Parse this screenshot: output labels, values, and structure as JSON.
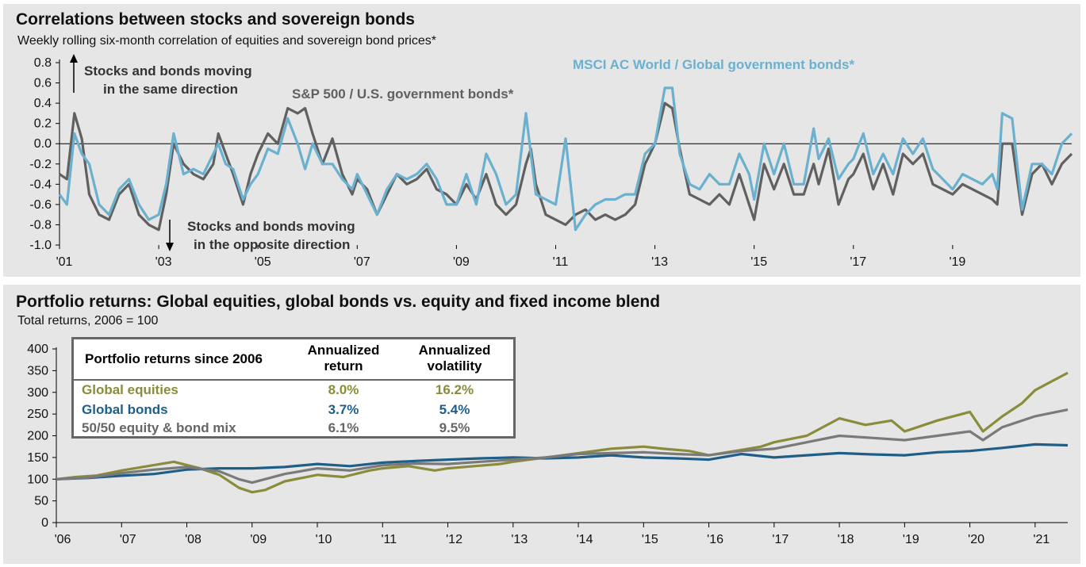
{
  "colors": {
    "sp500": "#606060",
    "msci": "#6ab0cf",
    "global_equities": "#8a8c3b",
    "global_bonds": "#1f5f87",
    "blend": "#7a7a7a",
    "panel_bg": "#e6e6e6"
  },
  "panel1": {
    "title": "Correlations between stocks and sovereign bonds",
    "subtitle": "Weekly rolling six-month correlation of equities and sovereign bond prices*",
    "annotation_up_line1": "Stocks and bonds moving",
    "annotation_up_line2": "in the same direction",
    "annotation_down_line1": "Stocks and bonds moving",
    "annotation_down_line2": "in the opposite direction",
    "series_label_sp": "S&P 500 / U.S. government bonds*",
    "series_label_msci": "MSCI AC World / Global government bonds*"
  },
  "panel2": {
    "title": "Portfolio returns: Global equities, global bonds vs. equity and fixed income blend",
    "subtitle": "Total returns, 2006 = 100",
    "table": {
      "header_label": "Portfolio returns since 2006",
      "col1_line1": "Annualized",
      "col1_line2": "return",
      "col2_line1": "Annualized",
      "col2_line2": "volatility",
      "rows": [
        {
          "name": "Global equities",
          "ret": "8.0%",
          "vol": "16.2%"
        },
        {
          "name": "Global bonds",
          "ret": "3.7%",
          "vol": "5.4%"
        },
        {
          "name": "50/50 equity & bond mix",
          "ret": "6.1%",
          "vol": "9.5%"
        }
      ]
    }
  },
  "chart_data": [
    {
      "type": "line",
      "title": "Correlations between stocks and sovereign bonds",
      "subtitle": "Weekly rolling six-month correlation of equities and sovereign bond prices*",
      "x_ticks": [
        "'01",
        "'03",
        "'05",
        "'07",
        "'09",
        "'11",
        "'13",
        "'15",
        "'17",
        "'19"
      ],
      "y_ticks": [
        "0.8",
        "0.6",
        "0.4",
        "0.2",
        "0.0",
        "-0.2",
        "-0.4",
        "-0.6",
        "-0.8",
        "-1.0"
      ],
      "xlim": [
        2001,
        2021.4
      ],
      "ylim": [
        -1.0,
        0.8
      ],
      "series": [
        {
          "name": "S&P 500 / U.S. government bonds*",
          "x": [
            2001.0,
            2001.15,
            2001.3,
            2001.45,
            2001.6,
            2001.8,
            2002.0,
            2002.2,
            2002.4,
            2002.6,
            2002.8,
            2003.0,
            2003.15,
            2003.3,
            2003.5,
            2003.7,
            2003.9,
            2004.1,
            2004.2,
            2004.35,
            2004.5,
            2004.7,
            2004.85,
            2005.0,
            2005.2,
            2005.4,
            2005.6,
            2005.8,
            2005.95,
            2006.1,
            2006.3,
            2006.5,
            2006.7,
            2006.9,
            2007.0,
            2007.2,
            2007.4,
            2007.6,
            2007.8,
            2008.0,
            2008.2,
            2008.4,
            2008.6,
            2008.8,
            2009.0,
            2009.2,
            2009.4,
            2009.6,
            2009.8,
            2010.0,
            2010.2,
            2010.4,
            2010.5,
            2010.6,
            2010.8,
            2011.0,
            2011.2,
            2011.4,
            2011.6,
            2011.8,
            2012.0,
            2012.2,
            2012.4,
            2012.6,
            2012.8,
            2013.0,
            2013.2,
            2013.35,
            2013.5,
            2013.7,
            2013.9,
            2014.1,
            2014.3,
            2014.5,
            2014.7,
            2014.9,
            2015.0,
            2015.2,
            2015.4,
            2015.6,
            2015.8,
            2016.0,
            2016.2,
            2016.3,
            2016.5,
            2016.7,
            2016.9,
            2017.0,
            2017.2,
            2017.4,
            2017.6,
            2017.8,
            2018.0,
            2018.2,
            2018.4,
            2018.6,
            2018.8,
            2019.0,
            2019.2,
            2019.4,
            2019.6,
            2019.8,
            2019.9,
            2020.0,
            2020.2,
            2020.4,
            2020.6,
            2020.8,
            2021.0,
            2021.2,
            2021.4
          ],
          "y": [
            -0.3,
            -0.35,
            0.3,
            0.05,
            -0.5,
            -0.7,
            -0.75,
            -0.5,
            -0.4,
            -0.7,
            -0.8,
            -0.85,
            -0.5,
            0.0,
            -0.2,
            -0.3,
            -0.35,
            -0.2,
            0.1,
            -0.1,
            -0.3,
            -0.6,
            -0.3,
            -0.1,
            0.1,
            0.0,
            0.35,
            0.3,
            0.35,
            0.1,
            -0.2,
            0.05,
            -0.3,
            -0.5,
            -0.35,
            -0.45,
            -0.7,
            -0.5,
            -0.3,
            -0.4,
            -0.35,
            -0.25,
            -0.45,
            -0.5,
            -0.6,
            -0.4,
            -0.55,
            -0.3,
            -0.6,
            -0.7,
            -0.6,
            -0.2,
            -0.05,
            -0.4,
            -0.7,
            -0.75,
            -0.8,
            -0.7,
            -0.65,
            -0.75,
            -0.7,
            -0.75,
            -0.7,
            -0.6,
            -0.2,
            0.0,
            0.4,
            0.35,
            -0.05,
            -0.5,
            -0.55,
            -0.6,
            -0.5,
            -0.6,
            -0.3,
            -0.6,
            -0.75,
            -0.2,
            -0.45,
            -0.2,
            -0.5,
            -0.5,
            -0.2,
            -0.4,
            -0.05,
            -0.6,
            -0.35,
            -0.3,
            -0.1,
            -0.45,
            -0.2,
            -0.5,
            -0.1,
            -0.2,
            -0.1,
            -0.4,
            -0.45,
            -0.5,
            -0.4,
            -0.45,
            -0.5,
            -0.55,
            -0.6,
            0.0,
            0.0,
            -0.7,
            -0.3,
            -0.2,
            -0.4,
            -0.2,
            -0.1
          ]
        },
        {
          "name": "MSCI AC World / Global government bonds*",
          "x": [
            2001.0,
            2001.15,
            2001.3,
            2001.45,
            2001.6,
            2001.8,
            2002.0,
            2002.2,
            2002.4,
            2002.6,
            2002.8,
            2003.0,
            2003.15,
            2003.3,
            2003.5,
            2003.7,
            2003.9,
            2004.1,
            2004.2,
            2004.35,
            2004.5,
            2004.7,
            2004.85,
            2005.0,
            2005.2,
            2005.4,
            2005.6,
            2005.8,
            2005.95,
            2006.1,
            2006.3,
            2006.5,
            2006.7,
            2006.9,
            2007.0,
            2007.2,
            2007.4,
            2007.6,
            2007.8,
            2008.0,
            2008.2,
            2008.4,
            2008.6,
            2008.8,
            2009.0,
            2009.2,
            2009.4,
            2009.6,
            2009.8,
            2010.0,
            2010.2,
            2010.4,
            2010.5,
            2010.6,
            2010.8,
            2011.0,
            2011.2,
            2011.4,
            2011.6,
            2011.8,
            2012.0,
            2012.2,
            2012.4,
            2012.6,
            2012.8,
            2013.0,
            2013.2,
            2013.35,
            2013.5,
            2013.7,
            2013.9,
            2014.1,
            2014.3,
            2014.5,
            2014.7,
            2014.9,
            2015.0,
            2015.2,
            2015.4,
            2015.6,
            2015.8,
            2016.0,
            2016.2,
            2016.3,
            2016.5,
            2016.7,
            2016.9,
            2017.0,
            2017.2,
            2017.4,
            2017.6,
            2017.8,
            2018.0,
            2018.2,
            2018.4,
            2018.6,
            2018.8,
            2019.0,
            2019.2,
            2019.4,
            2019.6,
            2019.8,
            2019.9,
            2020.0,
            2020.2,
            2020.4,
            2020.6,
            2020.8,
            2021.0,
            2021.2,
            2021.4
          ],
          "y": [
            -0.5,
            -0.6,
            0.1,
            -0.1,
            -0.2,
            -0.6,
            -0.7,
            -0.45,
            -0.35,
            -0.6,
            -0.75,
            -0.7,
            -0.4,
            0.1,
            -0.3,
            -0.25,
            -0.3,
            -0.1,
            0.0,
            -0.2,
            -0.25,
            -0.55,
            -0.4,
            -0.3,
            -0.05,
            -0.1,
            0.25,
            0.0,
            -0.25,
            0.0,
            -0.2,
            -0.2,
            -0.35,
            -0.45,
            -0.3,
            -0.5,
            -0.7,
            -0.45,
            -0.3,
            -0.35,
            -0.3,
            -0.2,
            -0.35,
            -0.6,
            -0.6,
            -0.3,
            -0.6,
            -0.1,
            -0.3,
            -0.6,
            -0.5,
            0.3,
            -0.1,
            -0.5,
            -0.55,
            -0.6,
            0.05,
            -0.85,
            -0.7,
            -0.6,
            -0.55,
            -0.55,
            -0.5,
            -0.5,
            -0.1,
            0.0,
            0.55,
            0.55,
            -0.1,
            -0.4,
            -0.45,
            -0.3,
            -0.4,
            -0.4,
            -0.1,
            -0.3,
            -0.55,
            0.0,
            -0.3,
            0.0,
            -0.4,
            -0.4,
            0.15,
            -0.15,
            0.05,
            -0.35,
            -0.2,
            -0.15,
            0.1,
            -0.3,
            -0.1,
            -0.3,
            0.05,
            -0.1,
            0.05,
            -0.25,
            -0.35,
            -0.45,
            -0.3,
            -0.35,
            -0.4,
            -0.3,
            -0.45,
            0.3,
            0.25,
            -0.65,
            -0.2,
            -0.2,
            -0.3,
            0.0,
            0.1
          ]
        }
      ]
    },
    {
      "type": "line",
      "title": "Portfolio returns: Global equities, global bonds vs. equity and fixed income blend",
      "subtitle": "Total returns, 2006 = 100",
      "x_ticks": [
        "'06",
        "'07",
        "'08",
        "'09",
        "'10",
        "'11",
        "'12",
        "'13",
        "'14",
        "'15",
        "'16",
        "'17",
        "'18",
        "'19",
        "'20",
        "'21"
      ],
      "y_ticks": [
        "0",
        "50",
        "100",
        "150",
        "200",
        "250",
        "300",
        "350",
        "400"
      ],
      "xlim": [
        2006,
        2021.5
      ],
      "ylim": [
        0,
        400
      ],
      "series": [
        {
          "name": "Global equities",
          "x": [
            2006.0,
            2006.3,
            2006.6,
            2007.0,
            2007.4,
            2007.8,
            2008.2,
            2008.5,
            2008.8,
            2009.0,
            2009.2,
            2009.5,
            2010.0,
            2010.4,
            2010.8,
            2011.0,
            2011.4,
            2011.8,
            2012.0,
            2012.4,
            2012.8,
            2013.0,
            2013.5,
            2014.0,
            2014.5,
            2015.0,
            2015.3,
            2015.7,
            2016.0,
            2016.4,
            2016.8,
            2017.0,
            2017.5,
            2018.0,
            2018.4,
            2018.8,
            2019.0,
            2019.5,
            2020.0,
            2020.2,
            2020.5,
            2020.8,
            2021.0,
            2021.5
          ],
          "y": [
            100,
            105,
            108,
            120,
            130,
            140,
            125,
            110,
            80,
            70,
            75,
            95,
            110,
            105,
            120,
            125,
            130,
            120,
            125,
            130,
            135,
            140,
            150,
            160,
            170,
            175,
            170,
            165,
            155,
            165,
            175,
            185,
            200,
            240,
            225,
            235,
            210,
            235,
            255,
            210,
            245,
            275,
            305,
            345
          ]
        },
        {
          "name": "Global bonds",
          "x": [
            2006.0,
            2006.5,
            2007.0,
            2007.5,
            2008.0,
            2008.5,
            2009.0,
            2009.5,
            2010.0,
            2010.5,
            2011.0,
            2011.5,
            2012.0,
            2012.5,
            2013.0,
            2013.5,
            2014.0,
            2014.5,
            2015.0,
            2015.5,
            2016.0,
            2016.5,
            2017.0,
            2017.5,
            2018.0,
            2018.5,
            2019.0,
            2019.5,
            2020.0,
            2020.5,
            2021.0,
            2021.5
          ],
          "y": [
            100,
            103,
            108,
            112,
            122,
            125,
            125,
            128,
            135,
            130,
            138,
            142,
            145,
            148,
            150,
            148,
            150,
            155,
            150,
            148,
            145,
            158,
            150,
            155,
            160,
            157,
            155,
            162,
            165,
            172,
            180,
            178
          ]
        },
        {
          "name": "50/50 equity & bond mix",
          "x": [
            2006.0,
            2006.5,
            2007.0,
            2007.5,
            2008.0,
            2008.5,
            2008.8,
            2009.0,
            2009.5,
            2010.0,
            2010.5,
            2011.0,
            2011.5,
            2012.0,
            2012.5,
            2013.0,
            2013.5,
            2014.0,
            2014.5,
            2015.0,
            2015.5,
            2016.0,
            2016.5,
            2017.0,
            2017.5,
            2018.0,
            2018.5,
            2019.0,
            2019.5,
            2020.0,
            2020.2,
            2020.5,
            2021.0,
            2021.5
          ],
          "y": [
            100,
            104,
            114,
            122,
            128,
            118,
            100,
            92,
            112,
            125,
            120,
            132,
            136,
            135,
            140,
            145,
            150,
            158,
            160,
            162,
            158,
            155,
            165,
            170,
            185,
            200,
            195,
            190,
            200,
            210,
            190,
            220,
            245,
            260
          ]
        }
      ]
    }
  ]
}
